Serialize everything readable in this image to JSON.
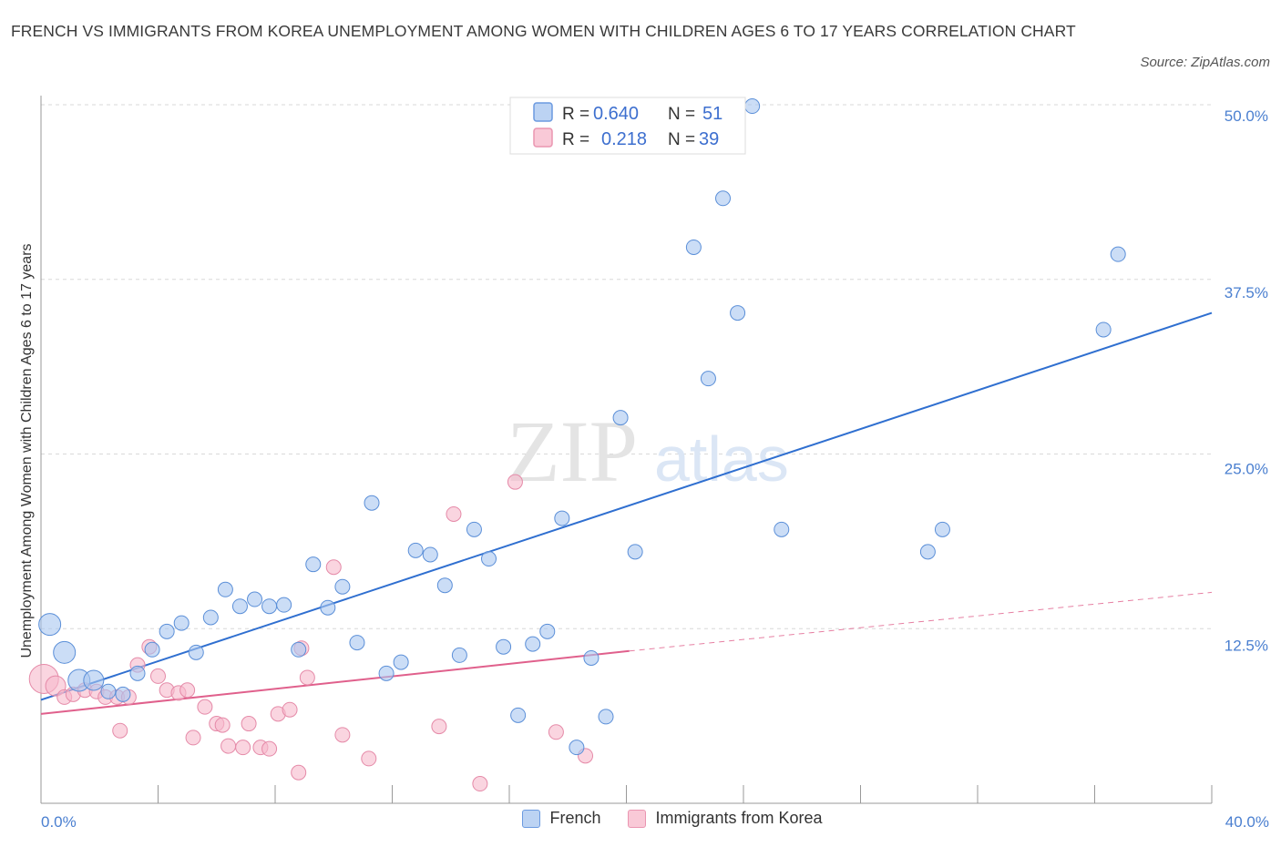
{
  "title": "FRENCH VS IMMIGRANTS FROM KOREA UNEMPLOYMENT AMONG WOMEN WITH CHILDREN AGES 6 TO 17 YEARS CORRELATION CHART",
  "source": "Source: ZipAtlas.com",
  "watermark": {
    "zip": "ZIP",
    "atlas": "atlas"
  },
  "legend_top": [
    {
      "series": "French",
      "r_label": "R =",
      "r_value": "0.640",
      "n_label": "N =",
      "n_value": "51"
    },
    {
      "series": "Immigrants from Korea",
      "r_label": "R =",
      "r_value": "0.218",
      "n_label": "N =",
      "n_value": "39"
    }
  ],
  "colors": {
    "french_fill": "#a9c6f0",
    "french_stroke": "#5b8fd8",
    "french_line": "#2f6fd0",
    "korea_fill": "#f7b9cc",
    "korea_stroke": "#e58aa8",
    "korea_line": "#e0608c",
    "grid": "#d8d8d8",
    "axis": "#999999",
    "tick_text": "#4a7fd0"
  },
  "chart_data": {
    "type": "scatter",
    "title": "FRENCH VS IMMIGRANTS FROM KOREA UNEMPLOYMENT AMONG WOMEN WITH CHILDREN AGES 6 TO 17 YEARS CORRELATION CHART",
    "xlabel": "",
    "ylabel": "Unemployment Among Women with Children Ages 6 to 17 years",
    "xlim": [
      0,
      40
    ],
    "ylim": [
      0,
      50
    ],
    "x_tick_labels": [
      "0.0%",
      "40.0%"
    ],
    "y_ticks": [
      12.5,
      25.0,
      37.5,
      50.0
    ],
    "y_tick_labels": [
      "12.5%",
      "25.0%",
      "37.5%",
      "50.0%"
    ],
    "grid": true,
    "legend_placement": "top-center",
    "series": [
      {
        "name": "French",
        "points": [
          [
            0.3,
            12.8,
            "l"
          ],
          [
            0.8,
            10.8,
            "l"
          ],
          [
            1.3,
            8.8,
            "l"
          ],
          [
            1.8,
            8.8,
            "m"
          ],
          [
            2.3,
            8.0,
            "s"
          ],
          [
            2.8,
            7.8,
            "s"
          ],
          [
            3.3,
            9.3,
            "s"
          ],
          [
            3.8,
            11.0,
            "s"
          ],
          [
            4.3,
            12.3,
            "s"
          ],
          [
            4.8,
            12.9,
            "s"
          ],
          [
            5.3,
            10.8,
            "s"
          ],
          [
            5.8,
            13.3,
            "s"
          ],
          [
            6.3,
            15.3,
            "s"
          ],
          [
            6.8,
            14.1,
            "s"
          ],
          [
            7.3,
            14.6,
            "s"
          ],
          [
            7.8,
            14.1,
            "s"
          ],
          [
            8.3,
            14.2,
            "s"
          ],
          [
            8.8,
            11.0,
            "s"
          ],
          [
            9.3,
            17.1,
            "s"
          ],
          [
            9.8,
            14.0,
            "s"
          ],
          [
            10.3,
            15.5,
            "s"
          ],
          [
            10.8,
            11.5,
            "s"
          ],
          [
            11.3,
            21.5,
            "s"
          ],
          [
            11.8,
            9.3,
            "s"
          ],
          [
            12.3,
            10.1,
            "s"
          ],
          [
            12.8,
            18.1,
            "s"
          ],
          [
            13.3,
            17.8,
            "s"
          ],
          [
            13.8,
            15.6,
            "s"
          ],
          [
            14.3,
            10.6,
            "s"
          ],
          [
            14.8,
            19.6,
            "s"
          ],
          [
            15.3,
            17.5,
            "s"
          ],
          [
            15.8,
            11.2,
            "s"
          ],
          [
            16.3,
            6.3,
            "s"
          ],
          [
            16.8,
            11.4,
            "s"
          ],
          [
            17.3,
            12.3,
            "s"
          ],
          [
            17.8,
            20.4,
            "s"
          ],
          [
            18.3,
            4.0,
            "s"
          ],
          [
            18.8,
            10.4,
            "s"
          ],
          [
            19.3,
            6.2,
            "s"
          ],
          [
            19.8,
            27.6,
            "s"
          ],
          [
            20.3,
            18.0,
            "s"
          ],
          [
            22.3,
            39.8,
            "s"
          ],
          [
            22.8,
            30.4,
            "s"
          ],
          [
            23.3,
            43.3,
            "s"
          ],
          [
            23.8,
            35.1,
            "s"
          ],
          [
            24.3,
            49.9,
            "s"
          ],
          [
            25.3,
            19.6,
            "s"
          ],
          [
            30.3,
            18.0,
            "s"
          ],
          [
            30.8,
            19.6,
            "s"
          ],
          [
            36.3,
            33.9,
            "s"
          ],
          [
            36.8,
            39.3,
            "s"
          ]
        ]
      },
      {
        "name": "Immigrants from Korea",
        "points": [
          [
            0.1,
            8.9,
            "xl"
          ],
          [
            0.5,
            8.4,
            "m"
          ],
          [
            0.8,
            7.6,
            "s"
          ],
          [
            1.1,
            7.8,
            "s"
          ],
          [
            1.5,
            8.1,
            "s"
          ],
          [
            1.9,
            8.0,
            "s"
          ],
          [
            2.2,
            7.6,
            "s"
          ],
          [
            2.6,
            7.6,
            "s"
          ],
          [
            3.0,
            7.6,
            "s"
          ],
          [
            2.7,
            5.2,
            "s"
          ],
          [
            3.3,
            9.9,
            "s"
          ],
          [
            3.7,
            11.2,
            "s"
          ],
          [
            4.0,
            9.1,
            "s"
          ],
          [
            4.3,
            8.1,
            "s"
          ],
          [
            4.7,
            7.9,
            "s"
          ],
          [
            5.0,
            8.1,
            "s"
          ],
          [
            5.2,
            4.7,
            "s"
          ],
          [
            5.6,
            6.9,
            "s"
          ],
          [
            6.0,
            5.7,
            "s"
          ],
          [
            6.2,
            5.6,
            "s"
          ],
          [
            6.4,
            4.1,
            "s"
          ],
          [
            6.9,
            4.0,
            "s"
          ],
          [
            7.1,
            5.7,
            "s"
          ],
          [
            7.5,
            4.0,
            "s"
          ],
          [
            7.8,
            3.9,
            "s"
          ],
          [
            8.1,
            6.4,
            "s"
          ],
          [
            8.5,
            6.7,
            "s"
          ],
          [
            8.8,
            2.2,
            "s"
          ],
          [
            8.9,
            11.1,
            "s"
          ],
          [
            9.1,
            9.0,
            "s"
          ],
          [
            10.0,
            16.9,
            "s"
          ],
          [
            10.3,
            4.9,
            "s"
          ],
          [
            11.2,
            3.2,
            "s"
          ],
          [
            13.6,
            5.5,
            "s"
          ],
          [
            14.1,
            20.7,
            "s"
          ],
          [
            15.0,
            1.4,
            "s"
          ],
          [
            16.2,
            23.0,
            "s"
          ],
          [
            17.6,
            5.1,
            "s"
          ],
          [
            18.6,
            3.4,
            "s"
          ]
        ]
      }
    ],
    "trend_lines": [
      {
        "series": "French",
        "x": [
          0,
          40
        ],
        "y": [
          7.4,
          35.1
        ]
      },
      {
        "series": "Immigrants from Korea",
        "x": [
          0,
          20.1
        ],
        "y": [
          6.4,
          10.9
        ],
        "dashed_extension_to": [
          40,
          15.1
        ]
      }
    ]
  }
}
